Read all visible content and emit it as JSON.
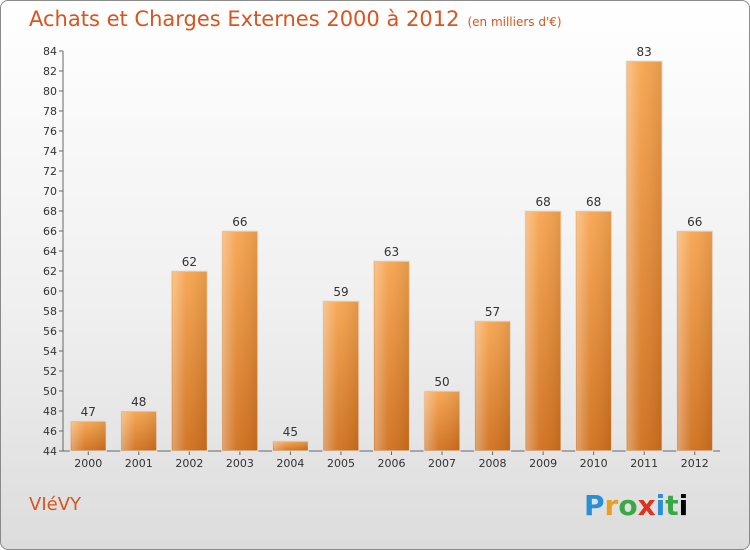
{
  "title": "Achats et Charges Externes 2000 à 2012",
  "subtitle": "(en milliers d'€)",
  "commune": "VIéVY",
  "logo_text": "Proxiti",
  "colors": {
    "bar": "#f08a2a",
    "bar_light": "#f7a85a",
    "bar_dark": "#c8661a",
    "title": "#d9541e"
  },
  "chart_data": {
    "type": "bar",
    "title": "Achats et Charges Externes 2000 à 2012",
    "subtitle": "(en milliers d'€)",
    "categories": [
      "2000",
      "2001",
      "2002",
      "2003",
      "2004",
      "2005",
      "2006",
      "2007",
      "2008",
      "2009",
      "2010",
      "2011",
      "2012"
    ],
    "values": [
      47,
      48,
      62,
      66,
      45,
      59,
      63,
      50,
      57,
      68,
      68,
      83,
      66
    ],
    "ylim": [
      44,
      84
    ],
    "yticks": [
      44,
      46,
      48,
      50,
      52,
      54,
      56,
      58,
      60,
      62,
      64,
      66,
      68,
      70,
      72,
      74,
      76,
      78,
      80,
      82,
      84
    ],
    "grid": false,
    "xlabel": "",
    "ylabel": ""
  }
}
